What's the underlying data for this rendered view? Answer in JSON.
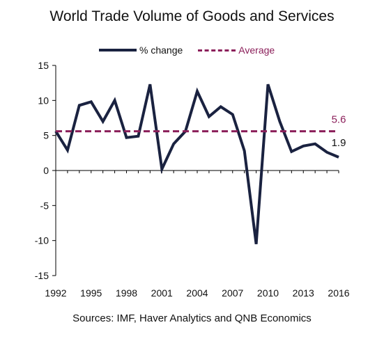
{
  "chart_data": {
    "type": "line",
    "title": "World Trade Volume of Goods and Services",
    "source": "Sources: IMF, Haver Analytics and QNB Economics",
    "ylim": [
      -15,
      15
    ],
    "yticks": [
      15,
      10,
      5,
      0,
      -5,
      -10,
      -15
    ],
    "xlim": [
      1992,
      2016
    ],
    "xticks": [
      1992,
      1995,
      1998,
      2001,
      2004,
      2007,
      2010,
      2013,
      2016
    ],
    "x": [
      1992,
      1993,
      1994,
      1995,
      1996,
      1997,
      1998,
      1999,
      2000,
      2001,
      2002,
      2003,
      2004,
      2005,
      2006,
      2007,
      2008,
      2009,
      2010,
      2011,
      2012,
      2013,
      2014,
      2015,
      2016
    ],
    "series": [
      {
        "name": "% change",
        "color": "#1a2240",
        "style": "solid",
        "values": [
          5.6,
          2.9,
          9.3,
          9.8,
          7.0,
          10.0,
          4.7,
          4.9,
          12.3,
          0.2,
          3.8,
          5.6,
          11.3,
          7.7,
          9.1,
          8.0,
          2.8,
          -10.5,
          12.3,
          7.0,
          2.7,
          3.5,
          3.8,
          2.6,
          1.9
        ]
      },
      {
        "name": "Average",
        "color": "#8b1f5a",
        "style": "dashed",
        "values": [
          5.6,
          5.6,
          5.6,
          5.6,
          5.6,
          5.6,
          5.6,
          5.6,
          5.6,
          5.6,
          5.6,
          5.6,
          5.6,
          5.6,
          5.6,
          5.6,
          5.6,
          5.6,
          5.6,
          5.6,
          5.6,
          5.6,
          5.6,
          5.6,
          5.6
        ]
      }
    ],
    "annotations": [
      {
        "text": "5.6",
        "color": "#8b1f5a"
      },
      {
        "text": "1.9",
        "color": "#111111"
      }
    ],
    "grid": false,
    "legend_position": "top"
  }
}
